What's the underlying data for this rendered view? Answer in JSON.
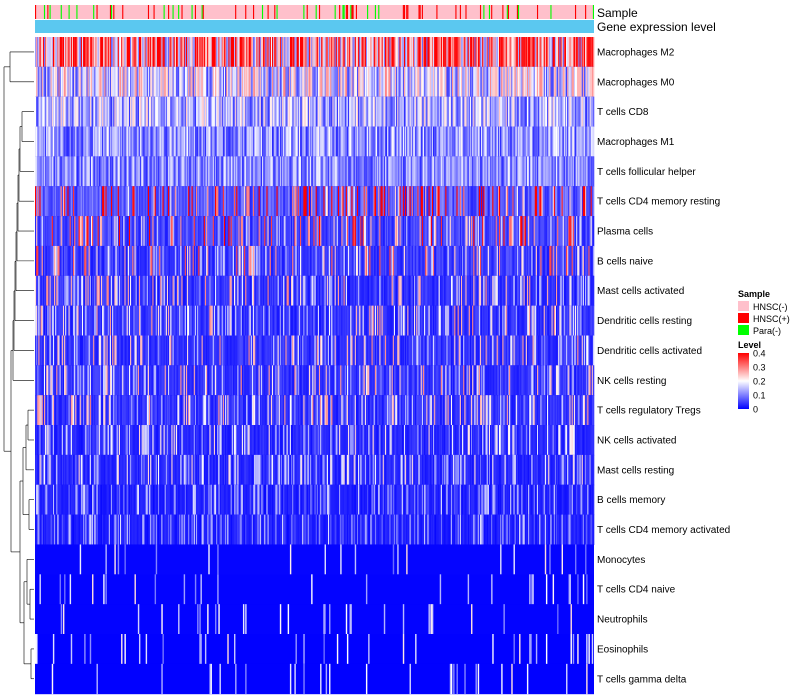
{
  "chart_data": {
    "type": "heatmap",
    "annotation_rows": [
      {
        "name": "Sample"
      },
      {
        "name": "Gene expression level"
      }
    ],
    "rows": [
      {
        "label": "Macrophages M2",
        "mean": 0.3
      },
      {
        "label": "Macrophages M0",
        "mean": 0.17
      },
      {
        "label": "T cells CD8",
        "mean": 0.14
      },
      {
        "label": "Macrophages M1",
        "mean": 0.12
      },
      {
        "label": "T cells follicular helper",
        "mean": 0.11
      },
      {
        "label": "T cells CD4 memory resting",
        "mean": 0.09
      },
      {
        "label": "Plasma cells",
        "mean": 0.07
      },
      {
        "label": "B cells naive",
        "mean": 0.06
      },
      {
        "label": "Mast cells activated",
        "mean": 0.05
      },
      {
        "label": "Dendritic cells resting",
        "mean": 0.05
      },
      {
        "label": "Dendritic cells activated",
        "mean": 0.05
      },
      {
        "label": "NK cells resting",
        "mean": 0.05
      },
      {
        "label": "T cells regulatory  Tregs",
        "mean": 0.05
      },
      {
        "label": "NK cells activated",
        "mean": 0.04
      },
      {
        "label": "Mast cells resting",
        "mean": 0.04
      },
      {
        "label": "B cells memory",
        "mean": 0.03
      },
      {
        "label": "T cells CD4 memory activated",
        "mean": 0.03
      },
      {
        "label": "Monocytes",
        "mean": 0.02
      },
      {
        "label": "T cells CD4 naive",
        "mean": 0.01
      },
      {
        "label": "Neutrophils",
        "mean": 0.01
      },
      {
        "label": "Eosinophils",
        "mean": 0.005
      },
      {
        "label": "T cells gamma delta",
        "mean": 0.002
      }
    ],
    "n_columns": 500,
    "color_scale": {
      "min": 0,
      "mid": 0.2,
      "max": 0.4,
      "low": "#0000FF",
      "mid_color": "#FFFFFF",
      "high": "#FF0000"
    },
    "legend": {
      "sample": {
        "title": "Sample",
        "items": [
          {
            "label": "HNSC(-)",
            "color": "#FFC0CB"
          },
          {
            "label": "HNSC(+)",
            "color": "#FF0000"
          },
          {
            "label": "Para(-)",
            "color": "#00FF00"
          }
        ]
      },
      "level": {
        "title": "Level",
        "ticks": [
          {
            "label": "0.4",
            "value": 0.4
          },
          {
            "label": "0.3",
            "value": 0.3
          },
          {
            "label": "0.2",
            "value": 0.2
          },
          {
            "label": "0.1",
            "value": 0.1
          },
          {
            "label": "0",
            "value": 0
          }
        ]
      }
    },
    "colors": {
      "sample_default": "#FFC0CB",
      "gene_expression": "#5BC8F0"
    }
  }
}
